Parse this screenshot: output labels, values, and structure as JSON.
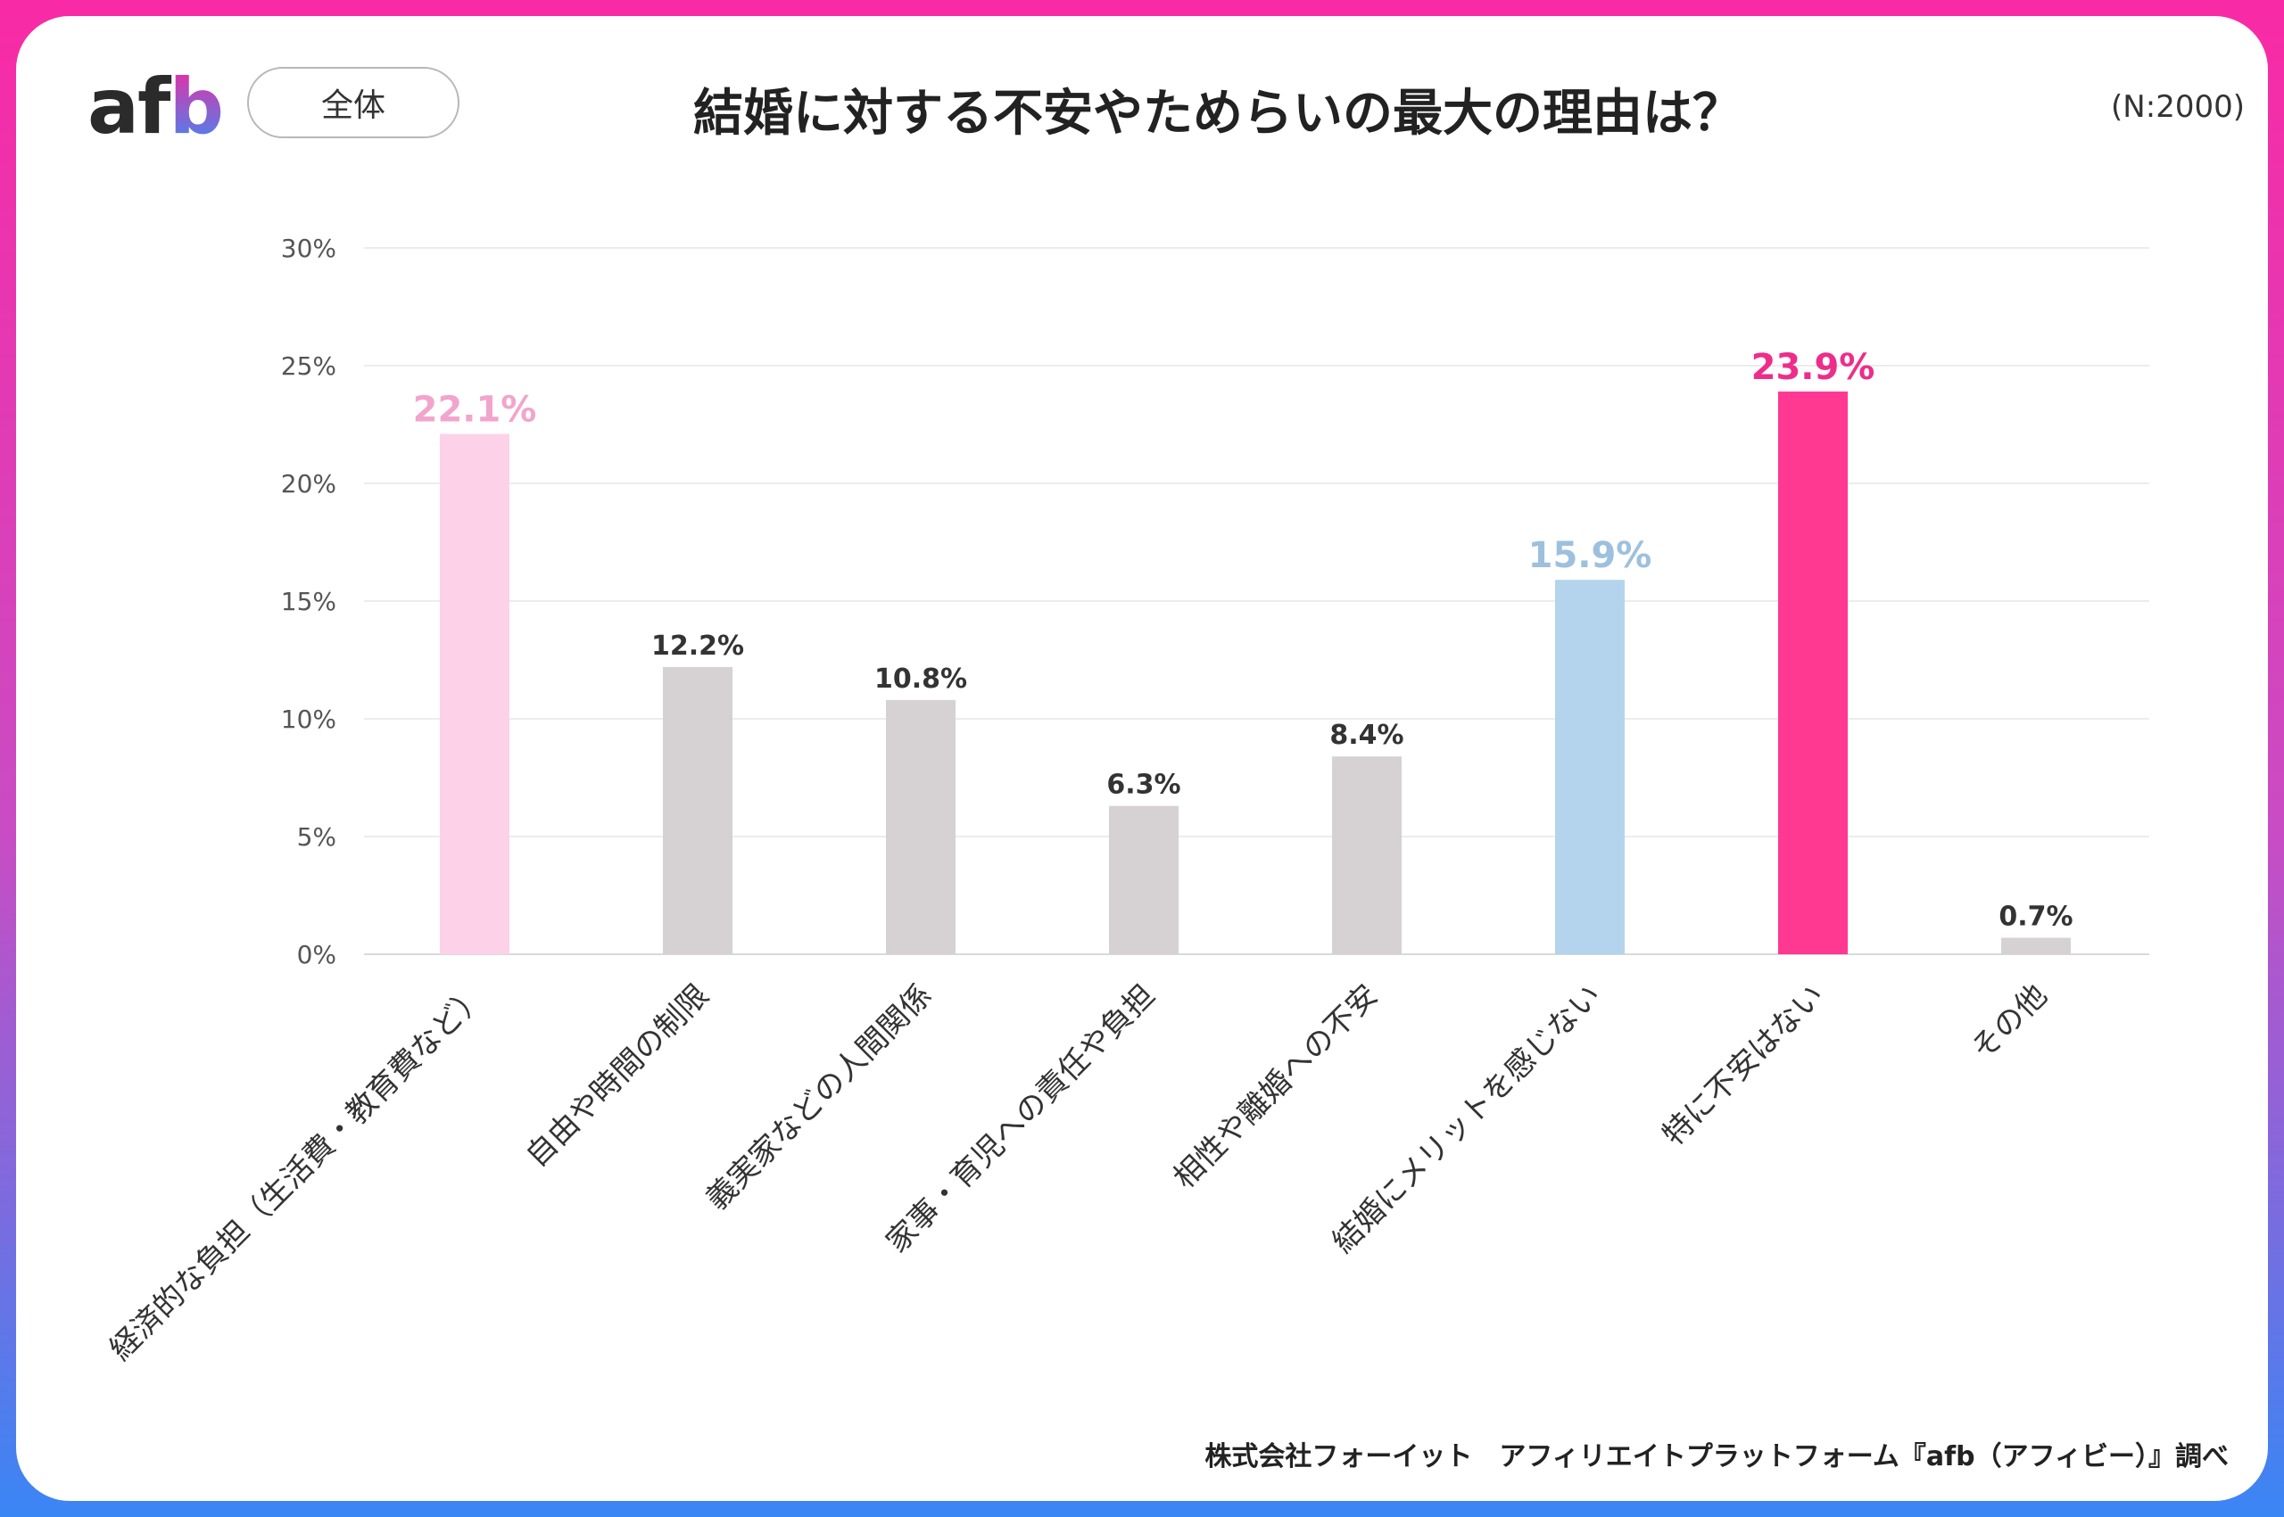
{
  "header": {
    "logo": "afb",
    "segment": "全体",
    "sample_size": "(N:2000)"
  },
  "chart_data": {
    "type": "bar",
    "title": "結婚に対する不安やためらいの最大の理由は？",
    "categories": [
      "経済的な負担（生活費・教育費など）",
      "自由や時間の制限",
      "義実家などの人間関係",
      "家事・育児への責任や負担",
      "相性や離婚への不安",
      "結婚にメリットを感じない",
      "特に不安はない",
      "その他"
    ],
    "values": [
      22.1,
      12.2,
      10.8,
      6.3,
      8.4,
      15.9,
      23.9,
      0.7
    ],
    "data_labels": [
      "22.1%",
      "12.2%",
      "10.8%",
      "6.3%",
      "8.4%",
      "15.9%",
      "23.9%",
      "0.7%"
    ],
    "bar_colors": [
      "#fdd2e9",
      "#d6d2d3",
      "#d6d2d3",
      "#d6d2d3",
      "#d6d2d3",
      "#b3d4ec",
      "#ff3891",
      "#d6d2d3"
    ],
    "label_colors": [
      "#f2a5cc",
      "#333333",
      "#333333",
      "#333333",
      "#333333",
      "#9dc0de",
      "#ee2d8a",
      "#333333"
    ],
    "ylim": [
      0,
      30
    ],
    "yticks": [
      "0%",
      "5%",
      "10%",
      "15%",
      "20%",
      "25%",
      "30%"
    ],
    "grid": true,
    "xlabel": "",
    "ylabel": ""
  },
  "footer": {
    "source": "株式会社フォーイット　アフィリエイトプラットフォーム『afb（アフィビー）』調べ"
  }
}
